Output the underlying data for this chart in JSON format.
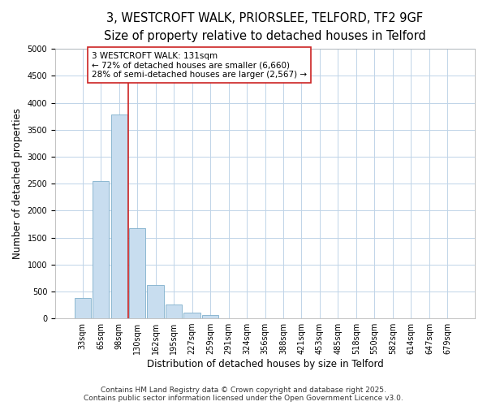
{
  "title_line1": "3, WESTCROFT WALK, PRIORSLEE, TELFORD, TF2 9GF",
  "title_line2": "Size of property relative to detached houses in Telford",
  "xlabel": "Distribution of detached houses by size in Telford",
  "ylabel": "Number of detached properties",
  "categories": [
    "33sqm",
    "65sqm",
    "98sqm",
    "130sqm",
    "162sqm",
    "195sqm",
    "227sqm",
    "259sqm",
    "291sqm",
    "324sqm",
    "356sqm",
    "388sqm",
    "421sqm",
    "453sqm",
    "485sqm",
    "518sqm",
    "550sqm",
    "582sqm",
    "614sqm",
    "647sqm",
    "679sqm"
  ],
  "values": [
    380,
    2550,
    3780,
    1680,
    620,
    250,
    110,
    60,
    0,
    0,
    0,
    0,
    0,
    0,
    0,
    0,
    0,
    0,
    0,
    0,
    0
  ],
  "bar_color": "#c8ddef",
  "bar_edge_color": "#7fb0cc",
  "grid_color": "#c0d4e8",
  "plot_bg_color": "#ffffff",
  "fig_bg_color": "#ffffff",
  "vline_color": "#cc2222",
  "vline_x_index": 3,
  "annotation_text": "3 WESTCROFT WALK: 131sqm\n← 72% of detached houses are smaller (6,660)\n28% of semi-detached houses are larger (2,567) →",
  "annotation_box_facecolor": "#ffffff",
  "annotation_box_edgecolor": "#cc2222",
  "ylim": [
    0,
    5000
  ],
  "yticks": [
    0,
    500,
    1000,
    1500,
    2000,
    2500,
    3000,
    3500,
    4000,
    4500,
    5000
  ],
  "footer_text": "Contains HM Land Registry data © Crown copyright and database right 2025.\nContains public sector information licensed under the Open Government Licence v3.0.",
  "title_fontsize": 10.5,
  "subtitle_fontsize": 9.5,
  "axis_label_fontsize": 8.5,
  "tick_fontsize": 7,
  "annotation_fontsize": 7.5,
  "footer_fontsize": 6.5
}
